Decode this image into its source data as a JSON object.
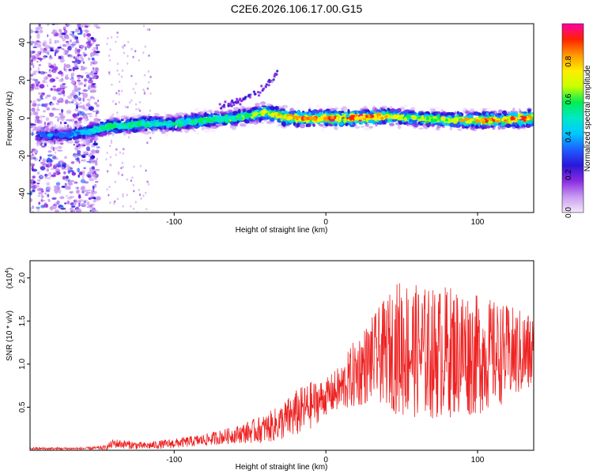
{
  "figure_title": "C2E6.2026.106.17.00.G15",
  "chart_data": [
    {
      "type": "heatmap",
      "title": "C2E6.2026.106.17.00.G15",
      "xlabel": "Height of straight line (km)",
      "ylabel": "Frequency (Hz)",
      "xlim": [
        -195,
        137
      ],
      "ylim": [
        -50,
        50
      ],
      "xticks": [
        -100,
        0,
        100
      ],
      "xtick_labels": [
        "-100",
        "0",
        "100"
      ],
      "yticks": [
        -40,
        -20,
        0,
        20,
        40
      ],
      "ytick_labels": [
        "-40",
        "-20",
        "0",
        "20",
        "40"
      ],
      "ridge": {
        "description": "Main spectral ridge (frequency center vs height)",
        "x": [
          -190,
          -170,
          -150,
          -140,
          -130,
          -120,
          -100,
          -80,
          -60,
          -40,
          -35,
          -25,
          -10,
          0,
          20,
          40,
          60,
          80,
          100,
          120,
          135
        ],
        "y": [
          -9,
          -9,
          -6,
          -4,
          -4,
          -3,
          -3,
          -1,
          0,
          3,
          2,
          0,
          0,
          0,
          0,
          1,
          0,
          -1,
          -1,
          -1,
          0
        ],
        "amplitude": [
          0.35,
          0.35,
          0.5,
          0.55,
          0.55,
          0.5,
          0.5,
          0.55,
          0.55,
          0.65,
          0.7,
          0.85,
          0.85,
          0.85,
          0.9,
          0.75,
          0.6,
          0.7,
          0.75,
          0.85,
          0.85
        ]
      },
      "secondary_branch": {
        "description": "Rising branch above the ridge",
        "x": [
          -70,
          -60,
          -50,
          -40,
          -32
        ],
        "y": [
          6,
          8,
          12,
          16,
          24
        ]
      },
      "colorbar": {
        "label": "Normalized spectral amplitude",
        "range": [
          0.0,
          1.0
        ],
        "ticks": [
          0.0,
          0.2,
          0.4,
          0.6,
          0.8
        ],
        "tick_labels": [
          "0.0",
          "0.2",
          "0.4",
          "0.6",
          "0.8"
        ],
        "colors": [
          "#f4e8fb",
          "#c89cf0",
          "#8a2be2",
          "#2a17d8",
          "#1f5dff",
          "#00c8ff",
          "#00e8c8",
          "#00ee55",
          "#c8ff00",
          "#ffee00",
          "#ff9900",
          "#ff2200",
          "#ff00a8"
        ]
      }
    },
    {
      "type": "line",
      "xlabel": "Height of straight line (km)",
      "ylabel": "SNR (10 * v/v)",
      "scale_label": "(x10",
      "scale_exponent": "4",
      "scale_suffix": ")",
      "xlim": [
        -195,
        137
      ],
      "ylim": [
        0,
        2.2
      ],
      "xticks": [
        -100,
        0,
        100
      ],
      "xtick_labels": [
        "-100",
        "0",
        "100"
      ],
      "yticks": [
        0.5,
        1.0,
        1.5,
        2.0
      ],
      "ytick_labels": [
        "0.5",
        "1.0",
        "1.5",
        "2.0"
      ],
      "series": [
        {
          "name": "SNR",
          "color": "#ee2222",
          "envelope": {
            "x": [
              -195,
              -160,
              -145,
              -140,
              -120,
              -100,
              -80,
              -60,
              -40,
              -30,
              -20,
              -10,
              0,
              10,
              20,
              30,
              40,
              50,
              60,
              70,
              80,
              90,
              100,
              110,
              120,
              135
            ],
            "mean": [
              0.02,
              0.02,
              0.03,
              0.08,
              0.05,
              0.08,
              0.12,
              0.18,
              0.25,
              0.32,
              0.42,
              0.52,
              0.62,
              0.72,
              0.9,
              1.05,
              1.15,
              1.2,
              1.15,
              1.12,
              1.15,
              1.15,
              1.1,
              1.12,
              1.12,
              1.12
            ],
            "spread": [
              0.01,
              0.01,
              0.02,
              0.04,
              0.03,
              0.04,
              0.05,
              0.07,
              0.12,
              0.15,
              0.2,
              0.2,
              0.15,
              0.2,
              0.3,
              0.35,
              0.45,
              0.6,
              0.55,
              0.55,
              0.55,
              0.55,
              0.5,
              0.45,
              0.4,
              0.35
            ]
          }
        }
      ]
    }
  ]
}
